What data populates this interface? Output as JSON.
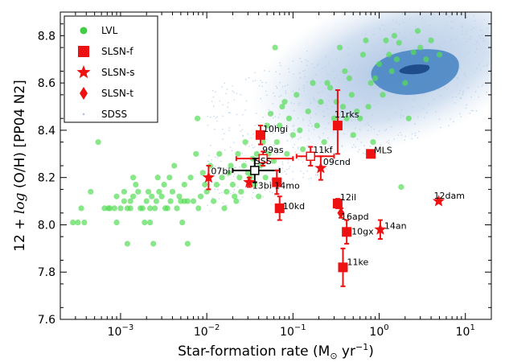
{
  "chart_data": {
    "type": "scatter",
    "xlabel": "Star-formation rate (M",
    "xlabel_sub": "⊙",
    "xlabel_unit": " yr",
    "xlabel_sup": "−1",
    "xlabel_close": ")",
    "ylabel": "12 + log (O/H) [PP04 N2]",
    "x_scale": "log",
    "xlim": [
      0.0002,
      20
    ],
    "ylim": [
      7.6,
      8.9
    ],
    "x_ticks": [
      {
        "v": 0.001,
        "base": "10",
        "exp": "−3"
      },
      {
        "v": 0.01,
        "base": "10",
        "exp": "−2"
      },
      {
        "v": 0.1,
        "base": "10",
        "exp": "−1"
      },
      {
        "v": 1,
        "base": "10",
        "exp": "0"
      },
      {
        "v": 10,
        "base": "10",
        "exp": "1"
      }
    ],
    "y_ticks": [
      "7.6",
      "7.8",
      "8.0",
      "8.2",
      "8.4",
      "8.6",
      "8.8"
    ],
    "legend": {
      "placement": "top-left",
      "entries": [
        {
          "label": "LVL",
          "marker": "circle",
          "color": "#44cc44"
        },
        {
          "label": "SLSN-f",
          "marker": "square",
          "color": "#ee1111"
        },
        {
          "label": "SLSN-s",
          "marker": "star",
          "color": "#ee1111"
        },
        {
          "label": "SLSN-t",
          "marker": "diamond",
          "color": "#ee1111"
        },
        {
          "label": "SDSS",
          "marker": "dot",
          "color": "#a8bcd8"
        }
      ]
    },
    "colors": {
      "lvl": "#55dd55",
      "slsn": "#ee1111",
      "sdss_cloud": "#b8cde6",
      "contour_mid": "#4a86c4",
      "contour_inner": "#1f4d8c"
    },
    "sdss_contours": "density cloud peaking near SFR ≈ 1–4, 12+log(O/H) ≈ 8.6–8.7",
    "lvl_points": [
      [
        0.00028,
        8.01
      ],
      [
        0.00032,
        8.01
      ],
      [
        0.00035,
        8.07
      ],
      [
        0.00038,
        8.01
      ],
      [
        0.00045,
        8.14
      ],
      [
        0.00055,
        8.35
      ],
      [
        0.00065,
        8.07
      ],
      [
        0.00072,
        8.07
      ],
      [
        0.00075,
        8.07
      ],
      [
        0.00085,
        8.07
      ],
      [
        0.0009,
        8.01
      ],
      [
        0.0009,
        8.12
      ],
      [
        0.001,
        8.07
      ],
      [
        0.0011,
        8.14
      ],
      [
        0.0011,
        8.1
      ],
      [
        0.0012,
        8.07
      ],
      [
        0.0012,
        7.92
      ],
      [
        0.0013,
        8.07
      ],
      [
        0.0013,
        8.1
      ],
      [
        0.0014,
        8.12
      ],
      [
        0.0014,
        8.2
      ],
      [
        0.0015,
        8.17
      ],
      [
        0.0016,
        8.14
      ],
      [
        0.0017,
        8.07
      ],
      [
        0.0018,
        8.07
      ],
      [
        0.0019,
        8.01
      ],
      [
        0.002,
        8.1
      ],
      [
        0.0021,
        8.14
      ],
      [
        0.0022,
        8.01
      ],
      [
        0.0022,
        8.07
      ],
      [
        0.0023,
        8.12
      ],
      [
        0.0024,
        7.92
      ],
      [
        0.0025,
        8.07
      ],
      [
        0.0026,
        8.1
      ],
      [
        0.0027,
        8.2
      ],
      [
        0.0028,
        8.14
      ],
      [
        0.003,
        8.12
      ],
      [
        0.0032,
        8.17
      ],
      [
        0.0033,
        8.07
      ],
      [
        0.0035,
        8.07
      ],
      [
        0.0037,
        8.2
      ],
      [
        0.0038,
        8.1
      ],
      [
        0.004,
        8.14
      ],
      [
        0.0042,
        8.25
      ],
      [
        0.0045,
        8.07
      ],
      [
        0.0048,
        8.12
      ],
      [
        0.005,
        8.1
      ],
      [
        0.0052,
        8.01
      ],
      [
        0.0055,
        8.17
      ],
      [
        0.0055,
        8.1
      ],
      [
        0.006,
        8.1
      ],
      [
        0.006,
        7.92
      ],
      [
        0.0065,
        8.2
      ],
      [
        0.007,
        8.1
      ],
      [
        0.0075,
        8.3
      ],
      [
        0.0078,
        8.45
      ],
      [
        0.008,
        8.07
      ],
      [
        0.0085,
        8.12
      ],
      [
        0.009,
        8.22
      ],
      [
        0.0095,
        8.17
      ],
      [
        0.01,
        8.14
      ],
      [
        0.011,
        8.25
      ],
      [
        0.012,
        8.1
      ],
      [
        0.013,
        8.17
      ],
      [
        0.014,
        8.3
      ],
      [
        0.015,
        8.2
      ],
      [
        0.016,
        8.07
      ],
      [
        0.017,
        8.14
      ],
      [
        0.018,
        8.22
      ],
      [
        0.019,
        8.25
      ],
      [
        0.02,
        8.17
      ],
      [
        0.021,
        8.12
      ],
      [
        0.022,
        8.1
      ],
      [
        0.023,
        8.3
      ],
      [
        0.024,
        8.2
      ],
      [
        0.025,
        8.14
      ],
      [
        0.027,
        8.25
      ],
      [
        0.028,
        8.35
      ],
      [
        0.03,
        8.22
      ],
      [
        0.032,
        8.2
      ],
      [
        0.034,
        8.28
      ],
      [
        0.036,
        8.17
      ],
      [
        0.038,
        8.3
      ],
      [
        0.04,
        8.12
      ],
      [
        0.042,
        8.25
      ],
      [
        0.045,
        8.35
      ],
      [
        0.048,
        8.2
      ],
      [
        0.05,
        8.42
      ],
      [
        0.052,
        8.3
      ],
      [
        0.055,
        8.47
      ],
      [
        0.06,
        8.27
      ],
      [
        0.062,
        8.75
      ],
      [
        0.065,
        8.35
      ],
      [
        0.07,
        8.42
      ],
      [
        0.075,
        8.5
      ],
      [
        0.08,
        8.52
      ],
      [
        0.085,
        8.3
      ],
      [
        0.09,
        8.45
      ],
      [
        0.1,
        8.38
      ],
      [
        0.11,
        8.55
      ],
      [
        0.12,
        8.4
      ],
      [
        0.13,
        8.32
      ],
      [
        0.15,
        8.48
      ],
      [
        0.17,
        8.6
      ],
      [
        0.19,
        8.42
      ],
      [
        0.21,
        8.52
      ],
      [
        0.23,
        8.35
      ],
      [
        0.25,
        8.6
      ],
      [
        0.27,
        8.58
      ],
      [
        0.3,
        8.45
      ],
      [
        0.32,
        8.52
      ],
      [
        0.35,
        8.75
      ],
      [
        0.38,
        8.5
      ],
      [
        0.4,
        8.65
      ],
      [
        0.42,
        8.45
      ],
      [
        0.45,
        8.62
      ],
      [
        0.48,
        8.55
      ],
      [
        0.5,
        8.38
      ],
      [
        0.55,
        8.48
      ],
      [
        0.6,
        8.45
      ],
      [
        0.65,
        8.72
      ],
      [
        0.7,
        8.78
      ],
      [
        0.75,
        8.5
      ],
      [
        0.8,
        8.6
      ],
      [
        0.85,
        8.35
      ],
      [
        0.9,
        8.62
      ],
      [
        1.0,
        8.68
      ],
      [
        1.1,
        8.55
      ],
      [
        1.2,
        8.78
      ],
      [
        1.3,
        8.72
      ],
      [
        1.4,
        8.65
      ],
      [
        1.5,
        8.8
      ],
      [
        1.6,
        8.7
      ],
      [
        1.7,
        8.77
      ],
      [
        1.8,
        8.16
      ],
      [
        2.0,
        8.6
      ],
      [
        2.2,
        8.45
      ],
      [
        2.5,
        8.73
      ],
      [
        2.8,
        8.82
      ],
      [
        3.0,
        8.75
      ],
      [
        3.5,
        8.7
      ],
      [
        4.0,
        8.78
      ],
      [
        5.0,
        8.72
      ]
    ],
    "slsn": [
      {
        "name": "07bi",
        "type": "star",
        "x": 0.0105,
        "y": 8.2,
        "yerr": 0.05
      },
      {
        "name": "10hgi",
        "type": "square",
        "x": 0.042,
        "y": 8.38,
        "yerr": 0.04
      },
      {
        "name": "99as",
        "type": "square",
        "x": 0.045,
        "y": 8.28,
        "xerr": [
          0.022,
          0.1
        ],
        "yerr": 0.03,
        "hollow": true
      },
      {
        "name": "SSS",
        "type": "square",
        "x": 0.036,
        "y": 8.23,
        "xerr": [
          0.02,
          0.07
        ],
        "yerr": 0.05,
        "hollow": true,
        "color": "#000000"
      },
      {
        "name": "13bi",
        "type": "star",
        "x": 0.031,
        "y": 8.18,
        "yerr": 0.02
      },
      {
        "name": "14mo",
        "type": "square",
        "x": 0.065,
        "y": 8.18,
        "yerr": 0.05
      },
      {
        "name": "10kd",
        "type": "square",
        "x": 0.07,
        "y": 8.07,
        "yerr": 0.05
      },
      {
        "name": "11rks",
        "type": "square",
        "x": 0.33,
        "y": 8.42,
        "yerr_lo": 0.12,
        "yerr_hi": 0.15
      },
      {
        "name": "11kf",
        "type": "square",
        "x": 0.16,
        "y": 8.29,
        "xerr": [
          0.11,
          0.3
        ],
        "yerr": 0.04,
        "hollow": true
      },
      {
        "name": "09cnd",
        "type": "star",
        "x": 0.21,
        "y": 8.24,
        "yerr": 0.05
      },
      {
        "name": "MLS",
        "type": "square",
        "x": 0.8,
        "y": 8.3,
        "yerr": 0.0
      },
      {
        "name": "12il",
        "type": "square",
        "x": 0.33,
        "y": 8.09,
        "yerr": 0.02
      },
      {
        "name": "16apd",
        "type": "diamond",
        "x": 0.36,
        "y": 8.05,
        "yerr": 0.02
      },
      {
        "name": "10gx",
        "type": "square",
        "x": 0.42,
        "y": 7.97,
        "yerr": 0.05
      },
      {
        "name": "14an",
        "type": "star",
        "x": 1.03,
        "y": 7.98,
        "yerr": 0.04
      },
      {
        "name": "11ke",
        "type": "square",
        "x": 0.38,
        "y": 7.82,
        "yerr": 0.08
      },
      {
        "name": "12dam",
        "type": "star",
        "x": 4.9,
        "y": 8.1,
        "yerr": 0.0
      }
    ]
  }
}
